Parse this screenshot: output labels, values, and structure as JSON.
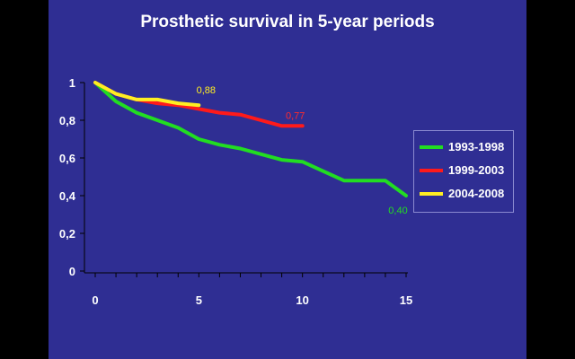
{
  "chart_data": {
    "type": "line",
    "title": "Prosthetic survival in 5-year periods",
    "xlim": [
      0,
      15
    ],
    "ylim": [
      0,
      1
    ],
    "x_ticks": [
      "0",
      "5",
      "10",
      "15"
    ],
    "y_ticks": [
      "0",
      "0,2",
      "0,4",
      "0,6",
      "0,8",
      "1"
    ],
    "grid": false,
    "legend_position": "right",
    "series": [
      {
        "name": "1993-1998",
        "color": "#22dd22",
        "points": [
          [
            0,
            1
          ],
          [
            0.5,
            0.95
          ],
          [
            1,
            0.9
          ],
          [
            2,
            0.84
          ],
          [
            3,
            0.8
          ],
          [
            4,
            0.76
          ],
          [
            5,
            0.7
          ],
          [
            6,
            0.67
          ],
          [
            7,
            0.65
          ],
          [
            8,
            0.62
          ],
          [
            9,
            0.59
          ],
          [
            10,
            0.58
          ],
          [
            11,
            0.53
          ],
          [
            12,
            0.48
          ],
          [
            13,
            0.48
          ],
          [
            14,
            0.48
          ],
          [
            15,
            0.4
          ]
        ],
        "end_label": "0,40",
        "end_label_color": "#22dd22"
      },
      {
        "name": "1999-2003",
        "color": "#ff1a1a",
        "points": [
          [
            0,
            1
          ],
          [
            1,
            0.94
          ],
          [
            2,
            0.91
          ],
          [
            3,
            0.89
          ],
          [
            4,
            0.88
          ],
          [
            5,
            0.86
          ],
          [
            6,
            0.84
          ],
          [
            7,
            0.83
          ],
          [
            8,
            0.8
          ],
          [
            9,
            0.77
          ],
          [
            10,
            0.77
          ]
        ],
        "end_label": "0,77",
        "end_label_color": "#ff2a2a"
      },
      {
        "name": "2004-2008",
        "color": "#ffee22",
        "points": [
          [
            0,
            1
          ],
          [
            1,
            0.94
          ],
          [
            2,
            0.91
          ],
          [
            3,
            0.91
          ],
          [
            4,
            0.89
          ],
          [
            5,
            0.88
          ]
        ],
        "end_label": "0,88",
        "end_label_color": "#ffee22"
      }
    ]
  }
}
